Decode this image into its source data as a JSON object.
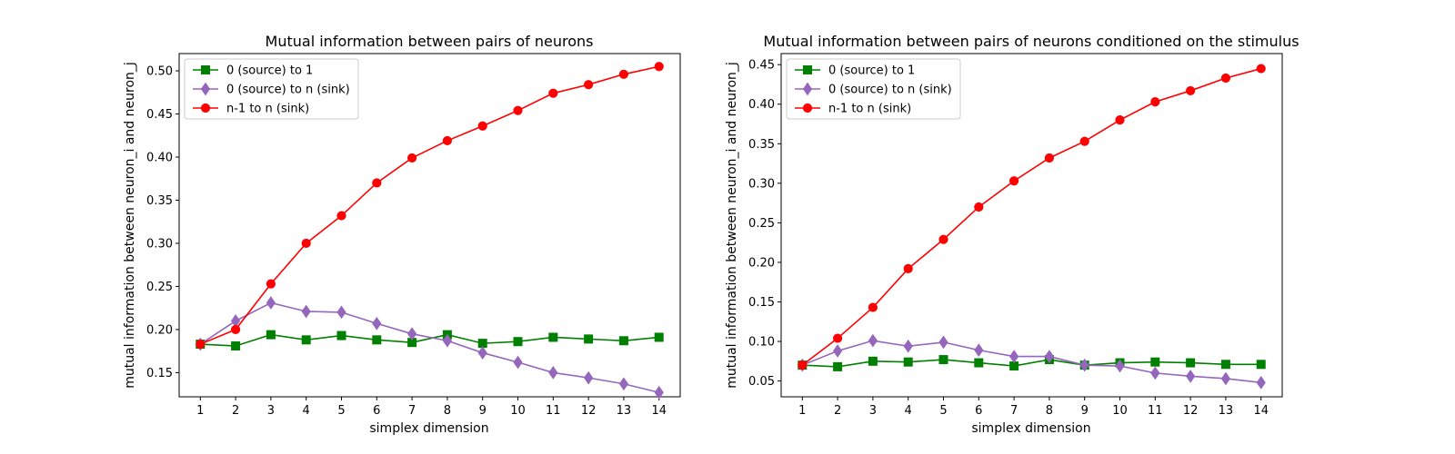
{
  "chart_data": [
    {
      "type": "line",
      "title": "Mutual information between pairs of neurons",
      "xlabel": "simplex dimension",
      "ylabel": "mutual information between neuron_i and neuron_j",
      "xlim": [
        0.4,
        14.6
      ],
      "ylim": [
        0.122,
        0.52
      ],
      "yticks": [
        0.15,
        0.2,
        0.25,
        0.3,
        0.35,
        0.4,
        0.45,
        0.5
      ],
      "ytick_labels": [
        "0.15",
        "0.20",
        "0.25",
        "0.30",
        "0.35",
        "0.40",
        "0.45",
        "0.50"
      ],
      "xticks": [
        1,
        2,
        3,
        4,
        5,
        6,
        7,
        8,
        9,
        10,
        11,
        12,
        13,
        14
      ],
      "xtick_labels": [
        "1",
        "2",
        "3",
        "4",
        "5",
        "6",
        "7",
        "8",
        "9",
        "10",
        "11",
        "12",
        "13",
        "14"
      ],
      "legend_position": "top-left",
      "grid": false,
      "x": [
        1,
        2,
        3,
        4,
        5,
        6,
        7,
        8,
        9,
        10,
        11,
        12,
        13,
        14
      ],
      "series": [
        {
          "name": "0 (source) to 1",
          "color": "#008000",
          "marker": "square",
          "values": [
            0.183,
            0.181,
            0.194,
            0.188,
            0.193,
            0.188,
            0.185,
            0.194,
            0.184,
            0.186,
            0.191,
            0.189,
            0.187,
            0.191
          ]
        },
        {
          "name": "0 (source) to n (sink)",
          "color": "#9467bd",
          "marker": "diamond",
          "values": [
            0.183,
            0.21,
            0.231,
            0.221,
            0.22,
            0.207,
            0.195,
            0.187,
            0.173,
            0.162,
            0.15,
            0.144,
            0.137,
            0.127
          ]
        },
        {
          "name": "n-1 to n (sink)",
          "color": "#ff0000",
          "marker": "circle",
          "values": [
            0.183,
            0.2,
            0.253,
            0.3,
            0.332,
            0.37,
            0.399,
            0.419,
            0.436,
            0.454,
            0.474,
            0.484,
            0.496,
            0.505
          ]
        }
      ]
    },
    {
      "type": "line",
      "title": "Mutual information between pairs of neurons conditioned on the stimulus",
      "xlabel": "simplex dimension",
      "ylabel": "mutual information between neuron_i and neuron_j",
      "xlim": [
        0.4,
        14.6
      ],
      "ylim": [
        0.03,
        0.464
      ],
      "yticks": [
        0.05,
        0.1,
        0.15,
        0.2,
        0.25,
        0.3,
        0.35,
        0.4,
        0.45
      ],
      "ytick_labels": [
        "0.05",
        "0.10",
        "0.15",
        "0.20",
        "0.25",
        "0.30",
        "0.35",
        "0.40",
        "0.45"
      ],
      "xticks": [
        1,
        2,
        3,
        4,
        5,
        6,
        7,
        8,
        9,
        10,
        11,
        12,
        13,
        14
      ],
      "xtick_labels": [
        "1",
        "2",
        "3",
        "4",
        "5",
        "6",
        "7",
        "8",
        "9",
        "10",
        "11",
        "12",
        "13",
        "14"
      ],
      "legend_position": "top-left",
      "grid": false,
      "x": [
        1,
        2,
        3,
        4,
        5,
        6,
        7,
        8,
        9,
        10,
        11,
        12,
        13,
        14
      ],
      "series": [
        {
          "name": "0 (source) to 1",
          "color": "#008000",
          "marker": "square",
          "values": [
            0.07,
            0.068,
            0.075,
            0.074,
            0.077,
            0.073,
            0.069,
            0.077,
            0.07,
            0.073,
            0.074,
            0.073,
            0.071,
            0.071
          ]
        },
        {
          "name": "0 (source) to n (sink)",
          "color": "#9467bd",
          "marker": "diamond",
          "values": [
            0.07,
            0.088,
            0.101,
            0.094,
            0.099,
            0.089,
            0.081,
            0.081,
            0.07,
            0.069,
            0.06,
            0.056,
            0.053,
            0.048
          ]
        },
        {
          "name": "n-1 to n (sink)",
          "color": "#ff0000",
          "marker": "circle",
          "values": [
            0.07,
            0.104,
            0.143,
            0.192,
            0.229,
            0.27,
            0.303,
            0.332,
            0.353,
            0.38,
            0.403,
            0.417,
            0.433,
            0.445
          ]
        }
      ]
    }
  ]
}
